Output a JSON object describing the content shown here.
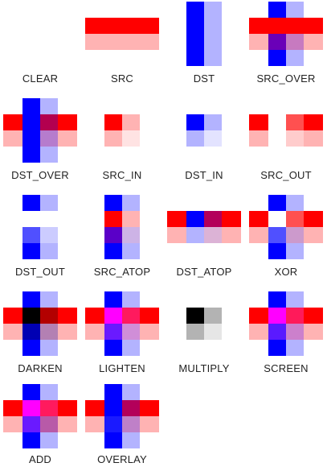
{
  "colors": {
    "red": "#ff0000",
    "red_light": "#ffb3b3",
    "blue": "#0000ff",
    "blue_light": "#b3b3ff"
  },
  "modes": [
    {
      "label": "CLEAR"
    },
    {
      "label": "SRC"
    },
    {
      "label": "DST"
    },
    {
      "label": "SRC_OVER"
    },
    {
      "label": "DST_OVER"
    },
    {
      "label": "SRC_IN"
    },
    {
      "label": "DST_IN"
    },
    {
      "label": "SRC_OUT"
    },
    {
      "label": "DST_OUT"
    },
    {
      "label": "SRC_ATOP"
    },
    {
      "label": "DST_ATOP"
    },
    {
      "label": "XOR"
    },
    {
      "label": "DARKEN"
    },
    {
      "label": "LIGHTEN"
    },
    {
      "label": "MULTIPLY"
    },
    {
      "label": "SCREEN"
    },
    {
      "label": "ADD"
    },
    {
      "label": "OVERLAY"
    }
  ]
}
